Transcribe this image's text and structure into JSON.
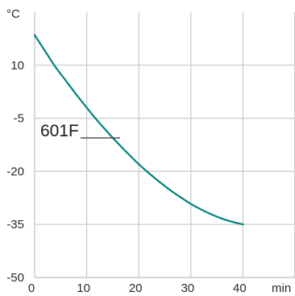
{
  "chart_data": {
    "type": "line",
    "title": "",
    "xlabel": "",
    "ylabel": "",
    "x_unit": "min",
    "y_unit": "°C",
    "xlim": [
      0,
      50
    ],
    "ylim": [
      -50,
      25
    ],
    "x_ticks": [
      0,
      10,
      20,
      30,
      40
    ],
    "y_ticks": [
      -50,
      -35,
      -20,
      -5,
      10
    ],
    "grid": true,
    "series_color": "#00827c",
    "grid_color": "#c9c9c9",
    "series": [
      {
        "name": "601F",
        "x": [
          0,
          2,
          4,
          6,
          8,
          10,
          12,
          14,
          16,
          18,
          20,
          22,
          24,
          26,
          28,
          30,
          32,
          34,
          36,
          38,
          40
        ],
        "y": [
          18.5,
          14.0,
          9.5,
          5.6,
          1.7,
          -2.0,
          -5.6,
          -8.9,
          -12.1,
          -15.1,
          -18.0,
          -20.6,
          -23.0,
          -25.3,
          -27.3,
          -29.2,
          -30.8,
          -32.2,
          -33.4,
          -34.3,
          -35.0
        ]
      }
    ]
  }
}
